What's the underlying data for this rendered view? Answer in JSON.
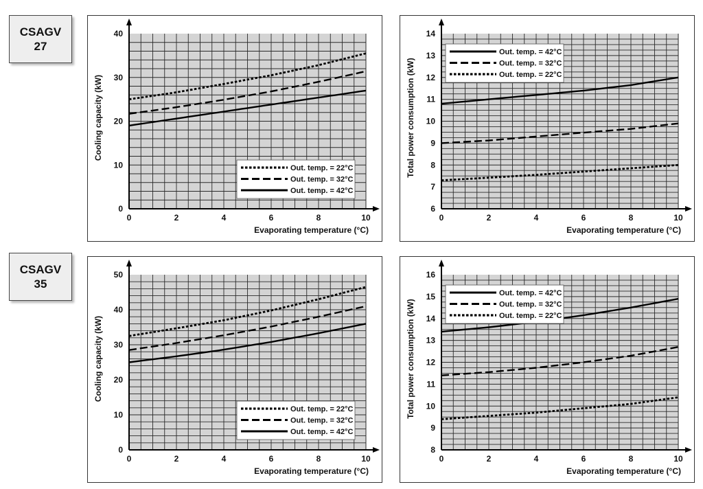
{
  "models": [
    {
      "line1": "CSAGV",
      "line2": "27"
    },
    {
      "line1": "CSAGV",
      "line2": "35"
    }
  ],
  "chart_data": [
    {
      "type": "line",
      "xlabel": "Evaporating temperature (°C)",
      "ylabel": "Cooling capacity (kW)",
      "xlim": [
        0,
        10
      ],
      "ylim": [
        0,
        40
      ],
      "xticks": [
        0,
        2,
        4,
        6,
        8,
        10
      ],
      "yticks": [
        0,
        10,
        20,
        30,
        40
      ],
      "grid": true,
      "legend_position": "bottom-right",
      "series": [
        {
          "name": "Out. temp. = 22°C",
          "style": "dotted",
          "x": [
            0,
            2,
            4,
            6,
            8,
            10
          ],
          "y": [
            25.0,
            26.6,
            28.5,
            30.5,
            32.8,
            35.5
          ]
        },
        {
          "name": "Out. temp. = 32°C",
          "style": "dashed",
          "x": [
            0,
            2,
            4,
            6,
            8,
            10
          ],
          "y": [
            21.7,
            23.2,
            24.9,
            26.8,
            29.0,
            31.4
          ]
        },
        {
          "name": "Out. temp. = 42°C",
          "style": "solid",
          "x": [
            0,
            2,
            4,
            6,
            8,
            10
          ],
          "y": [
            19.0,
            20.6,
            22.2,
            23.8,
            25.4,
            27.0
          ]
        }
      ]
    },
    {
      "type": "line",
      "xlabel": "Evaporating temperature (°C)",
      "ylabel": "Total power consumption (kW)",
      "xlim": [
        0,
        10
      ],
      "ylim": [
        6,
        14
      ],
      "xticks": [
        0,
        2,
        4,
        6,
        8,
        10
      ],
      "yticks": [
        6,
        7,
        8,
        9,
        10,
        11,
        12,
        13,
        14
      ],
      "grid": true,
      "legend_position": "top-left",
      "series": [
        {
          "name": "Out. temp. = 42°C",
          "style": "solid",
          "x": [
            0,
            2,
            4,
            6,
            8,
            10
          ],
          "y": [
            10.8,
            11.0,
            11.2,
            11.4,
            11.65,
            12.0
          ]
        },
        {
          "name": "Out. temp. = 32°C",
          "style": "dashed",
          "x": [
            0,
            2,
            4,
            6,
            8,
            10
          ],
          "y": [
            9.0,
            9.12,
            9.3,
            9.48,
            9.65,
            9.9
          ]
        },
        {
          "name": "Out. temp. = 22°C",
          "style": "dotted",
          "x": [
            0,
            2,
            4,
            6,
            8,
            10
          ],
          "y": [
            7.3,
            7.42,
            7.55,
            7.7,
            7.85,
            8.0
          ]
        }
      ]
    },
    {
      "type": "line",
      "xlabel": "Evaporating temperature (°C)",
      "ylabel": "Cooling capacity (kW)",
      "xlim": [
        0,
        10
      ],
      "ylim": [
        0,
        50
      ],
      "xticks": [
        0,
        2,
        4,
        6,
        8,
        10
      ],
      "yticks": [
        0,
        10,
        20,
        30,
        40,
        50
      ],
      "grid": true,
      "legend_position": "bottom-right",
      "series": [
        {
          "name": "Out. temp. = 22°C",
          "style": "dotted",
          "x": [
            0,
            2,
            4,
            6,
            8,
            10
          ],
          "y": [
            32.5,
            34.7,
            37.0,
            39.8,
            43.0,
            46.5
          ]
        },
        {
          "name": "Out. temp. = 32°C",
          "style": "dashed",
          "x": [
            0,
            2,
            4,
            6,
            8,
            10
          ],
          "y": [
            28.5,
            30.5,
            32.7,
            35.2,
            38.0,
            41.0
          ]
        },
        {
          "name": "Out. temp. = 42°C",
          "style": "solid",
          "x": [
            0,
            2,
            4,
            6,
            8,
            10
          ],
          "y": [
            25.0,
            26.7,
            28.6,
            30.8,
            33.3,
            36.0
          ]
        }
      ]
    },
    {
      "type": "line",
      "xlabel": "Evaporating temperature (°C)",
      "ylabel": "Total power consumption (kW)",
      "xlim": [
        0,
        10
      ],
      "ylim": [
        8,
        16
      ],
      "xticks": [
        0,
        2,
        4,
        6,
        8,
        10
      ],
      "yticks": [
        8,
        9,
        10,
        11,
        12,
        13,
        14,
        15,
        16
      ],
      "grid": true,
      "legend_position": "top-left",
      "series": [
        {
          "name": "Out. temp. = 42°C",
          "style": "solid",
          "x": [
            0,
            2,
            4,
            6,
            8,
            10
          ],
          "y": [
            13.4,
            13.6,
            13.85,
            14.15,
            14.5,
            14.9
          ]
        },
        {
          "name": "Out. temp. = 32°C",
          "style": "dashed",
          "x": [
            0,
            2,
            4,
            6,
            8,
            10
          ],
          "y": [
            11.4,
            11.55,
            11.75,
            12.0,
            12.3,
            12.7
          ]
        },
        {
          "name": "Out. temp. = 22°C",
          "style": "dotted",
          "x": [
            0,
            2,
            4,
            6,
            8,
            10
          ],
          "y": [
            9.4,
            9.55,
            9.7,
            9.9,
            10.1,
            10.4
          ]
        }
      ]
    }
  ]
}
